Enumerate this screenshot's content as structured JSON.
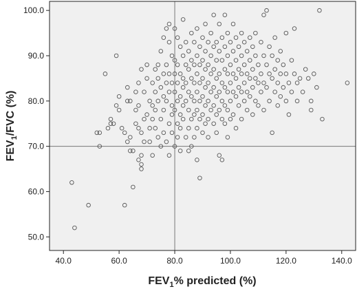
{
  "chart_data": {
    "type": "scatter",
    "title": "",
    "xlabel": {
      "main": "FEV",
      "sub": "1",
      "rest": "% predicted (%)"
    },
    "ylabel": {
      "main": "FEV",
      "sub": "1",
      "rest": "/FVC (%)"
    },
    "xlim": [
      35,
      145
    ],
    "ylim": [
      47,
      102
    ],
    "x_ticks": [
      40,
      60,
      80,
      100,
      120,
      140
    ],
    "x_tick_labels": [
      "40.0",
      "60.0",
      "80.0",
      "100.0",
      "120.0",
      "140.0"
    ],
    "y_ticks": [
      50,
      60,
      70,
      80,
      90,
      100
    ],
    "y_tick_labels": [
      "50.0",
      "60.0",
      "70.0",
      "80.0",
      "90.0",
      "100.0"
    ],
    "reference_lines": {
      "x": 80,
      "y": 70
    },
    "grid": false,
    "colors": {
      "plot_bg": "#f0f0f0",
      "marker": "#555555",
      "axis": "#222222",
      "reference": "#777777"
    },
    "points": [
      [
        43,
        62
      ],
      [
        44,
        52
      ],
      [
        49,
        57
      ],
      [
        52,
        73
      ],
      [
        53,
        70
      ],
      [
        53,
        73
      ],
      [
        55,
        86
      ],
      [
        56,
        74
      ],
      [
        57,
        76
      ],
      [
        57,
        75
      ],
      [
        58,
        75
      ],
      [
        59,
        90
      ],
      [
        59,
        79
      ],
      [
        60,
        81
      ],
      [
        60,
        78
      ],
      [
        61,
        74
      ],
      [
        62,
        57
      ],
      [
        62,
        73
      ],
      [
        63,
        71
      ],
      [
        63,
        83
      ],
      [
        63,
        80
      ],
      [
        64,
        69
      ],
      [
        64,
        72
      ],
      [
        64,
        80
      ],
      [
        65,
        69
      ],
      [
        65,
        61
      ],
      [
        66,
        75
      ],
      [
        66,
        78
      ],
      [
        66,
        82
      ],
      [
        67,
        84
      ],
      [
        67,
        67
      ],
      [
        67,
        74
      ],
      [
        67,
        79
      ],
      [
        68,
        66
      ],
      [
        68,
        68
      ],
      [
        68,
        65
      ],
      [
        68,
        73
      ],
      [
        68,
        87
      ],
      [
        69,
        71
      ],
      [
        69,
        76
      ],
      [
        69,
        82
      ],
      [
        70,
        88
      ],
      [
        70,
        85
      ],
      [
        70,
        77
      ],
      [
        71,
        74
      ],
      [
        71,
        80
      ],
      [
        71,
        71
      ],
      [
        72,
        84
      ],
      [
        72,
        79
      ],
      [
        72,
        68
      ],
      [
        72,
        76
      ],
      [
        73,
        87
      ],
      [
        73,
        82
      ],
      [
        73,
        74
      ],
      [
        73,
        78
      ],
      [
        74,
        88
      ],
      [
        74,
        72
      ],
      [
        74,
        80
      ],
      [
        74,
        85
      ],
      [
        75,
        91
      ],
      [
        75,
        76
      ],
      [
        75,
        83
      ],
      [
        75,
        70
      ],
      [
        76,
        94
      ],
      [
        76,
        78
      ],
      [
        76,
        86
      ],
      [
        76,
        81
      ],
      [
        76,
        73
      ],
      [
        77,
        96
      ],
      [
        77,
        80
      ],
      [
        77,
        84
      ],
      [
        77,
        71
      ],
      [
        77,
        88
      ],
      [
        78,
        97
      ],
      [
        78,
        93
      ],
      [
        78,
        75
      ],
      [
        78,
        82
      ],
      [
        78,
        86
      ],
      [
        78,
        68
      ],
      [
        79,
        90
      ],
      [
        79,
        79
      ],
      [
        79,
        84
      ],
      [
        79,
        77
      ],
      [
        79,
        73
      ],
      [
        80,
        96
      ],
      [
        80,
        89
      ],
      [
        80,
        82
      ],
      [
        80,
        86
      ],
      [
        80,
        78
      ],
      [
        80,
        70
      ],
      [
        81,
        94
      ],
      [
        81,
        88
      ],
      [
        81,
        84
      ],
      [
        81,
        80
      ],
      [
        81,
        75
      ],
      [
        81,
        72
      ],
      [
        82,
        92
      ],
      [
        82,
        86
      ],
      [
        82,
        81
      ],
      [
        82,
        77
      ],
      [
        82,
        74
      ],
      [
        82,
        69
      ],
      [
        83,
        98
      ],
      [
        83,
        90
      ],
      [
        83,
        85
      ],
      [
        83,
        83
      ],
      [
        83,
        79
      ],
      [
        83,
        76
      ],
      [
        84,
        93
      ],
      [
        84,
        88
      ],
      [
        84,
        84
      ],
      [
        84,
        80
      ],
      [
        84,
        72
      ],
      [
        85,
        91
      ],
      [
        85,
        87
      ],
      [
        85,
        82
      ],
      [
        85,
        78
      ],
      [
        85,
        74
      ],
      [
        85,
        69
      ],
      [
        86,
        95
      ],
      [
        86,
        89
      ],
      [
        86,
        85
      ],
      [
        86,
        81
      ],
      [
        86,
        76
      ],
      [
        86,
        70
      ],
      [
        87,
        93
      ],
      [
        87,
        88
      ],
      [
        87,
        84
      ],
      [
        87,
        80
      ],
      [
        87,
        77
      ],
      [
        87,
        72
      ],
      [
        88,
        96
      ],
      [
        88,
        90
      ],
      [
        88,
        86
      ],
      [
        88,
        82
      ],
      [
        88,
        78
      ],
      [
        88,
        74
      ],
      [
        88,
        67
      ],
      [
        89,
        92
      ],
      [
        89,
        88
      ],
      [
        89,
        84
      ],
      [
        89,
        80
      ],
      [
        89,
        76
      ],
      [
        89,
        63
      ],
      [
        90,
        94
      ],
      [
        90,
        89
      ],
      [
        90,
        85
      ],
      [
        90,
        81
      ],
      [
        90,
        77
      ],
      [
        90,
        73
      ],
      [
        91,
        97
      ],
      [
        91,
        91
      ],
      [
        91,
        87
      ],
      [
        91,
        83
      ],
      [
        91,
        79
      ],
      [
        91,
        75
      ],
      [
        92,
        93
      ],
      [
        92,
        88
      ],
      [
        92,
        84
      ],
      [
        92,
        80
      ],
      [
        92,
        76
      ],
      [
        92,
        72
      ],
      [
        93,
        95
      ],
      [
        93,
        90
      ],
      [
        93,
        86
      ],
      [
        93,
        82
      ],
      [
        93,
        78
      ],
      [
        94,
        99
      ],
      [
        94,
        92
      ],
      [
        94,
        87
      ],
      [
        94,
        83
      ],
      [
        94,
        79
      ],
      [
        94,
        75
      ],
      [
        95,
        93
      ],
      [
        95,
        89
      ],
      [
        95,
        85
      ],
      [
        95,
        81
      ],
      [
        95,
        77
      ],
      [
        95,
        73
      ],
      [
        96,
        97
      ],
      [
        96,
        91
      ],
      [
        96,
        86
      ],
      [
        96,
        82
      ],
      [
        96,
        78
      ],
      [
        96,
        68
      ],
      [
        97,
        94
      ],
      [
        97,
        89
      ],
      [
        97,
        84
      ],
      [
        97,
        80
      ],
      [
        97,
        76
      ],
      [
        97,
        67
      ],
      [
        98,
        99
      ],
      [
        98,
        92
      ],
      [
        98,
        87
      ],
      [
        98,
        83
      ],
      [
        98,
        79
      ],
      [
        98,
        75
      ],
      [
        99,
        95
      ],
      [
        99,
        90
      ],
      [
        99,
        86
      ],
      [
        99,
        82
      ],
      [
        99,
        78
      ],
      [
        99,
        72
      ],
      [
        100,
        93
      ],
      [
        100,
        88
      ],
      [
        100,
        84
      ],
      [
        100,
        80
      ],
      [
        100,
        76
      ],
      [
        101,
        97
      ],
      [
        101,
        91
      ],
      [
        101,
        86
      ],
      [
        101,
        82
      ],
      [
        101,
        77
      ],
      [
        102,
        94
      ],
      [
        102,
        89
      ],
      [
        102,
        85
      ],
      [
        102,
        81
      ],
      [
        102,
        74
      ],
      [
        103,
        92
      ],
      [
        103,
        87
      ],
      [
        103,
        83
      ],
      [
        103,
        79
      ],
      [
        104,
        95
      ],
      [
        104,
        90
      ],
      [
        104,
        86
      ],
      [
        104,
        82
      ],
      [
        104,
        76
      ],
      [
        105,
        93
      ],
      [
        105,
        88
      ],
      [
        105,
        84
      ],
      [
        105,
        80
      ],
      [
        106,
        91
      ],
      [
        106,
        86
      ],
      [
        106,
        82
      ],
      [
        106,
        78
      ],
      [
        107,
        94
      ],
      [
        107,
        89
      ],
      [
        107,
        85
      ],
      [
        107,
        81
      ],
      [
        108,
        92
      ],
      [
        108,
        87
      ],
      [
        108,
        83
      ],
      [
        108,
        77
      ],
      [
        109,
        95
      ],
      [
        109,
        90
      ],
      [
        109,
        85
      ],
      [
        109,
        80
      ],
      [
        110,
        88
      ],
      [
        110,
        84
      ],
      [
        110,
        79
      ],
      [
        111,
        93
      ],
      [
        111,
        86
      ],
      [
        111,
        82
      ],
      [
        112,
        99
      ],
      [
        112,
        90
      ],
      [
        112,
        84
      ],
      [
        112,
        78
      ],
      [
        113,
        100
      ],
      [
        113,
        88
      ],
      [
        113,
        83
      ],
      [
        114,
        92
      ],
      [
        114,
        86
      ],
      [
        114,
        80
      ],
      [
        115,
        90
      ],
      [
        115,
        85
      ],
      [
        115,
        73
      ],
      [
        116,
        94
      ],
      [
        116,
        87
      ],
      [
        116,
        82
      ],
      [
        117,
        89
      ],
      [
        117,
        84
      ],
      [
        117,
        79
      ],
      [
        118,
        91
      ],
      [
        118,
        86
      ],
      [
        118,
        81
      ],
      [
        119,
        88
      ],
      [
        119,
        83
      ],
      [
        120,
        95
      ],
      [
        120,
        86
      ],
      [
        120,
        80
      ],
      [
        121,
        84
      ],
      [
        121,
        77
      ],
      [
        122,
        89
      ],
      [
        122,
        82
      ],
      [
        123,
        96
      ],
      [
        123,
        86
      ],
      [
        124,
        84
      ],
      [
        124,
        80
      ],
      [
        125,
        85
      ],
      [
        126,
        82
      ],
      [
        127,
        87
      ],
      [
        128,
        85
      ],
      [
        129,
        78
      ],
      [
        129,
        80
      ],
      [
        130,
        86
      ],
      [
        131,
        83
      ],
      [
        132,
        100
      ],
      [
        133,
        76
      ],
      [
        142,
        84
      ]
    ]
  }
}
